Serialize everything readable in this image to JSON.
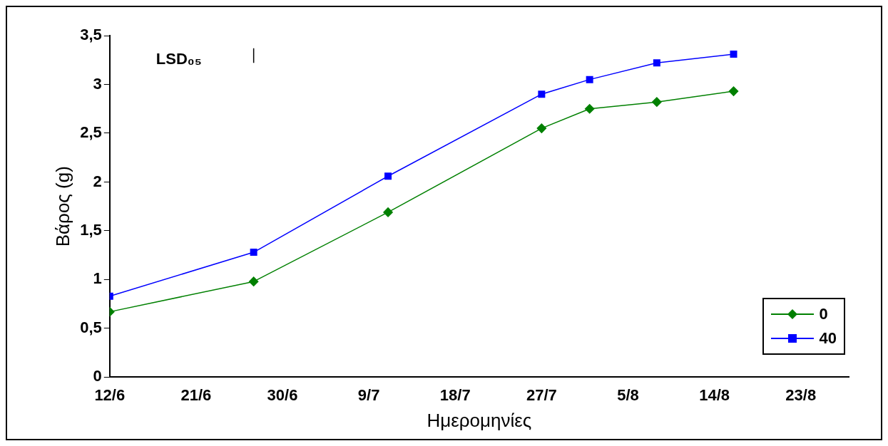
{
  "chart_data": {
    "type": "line",
    "xlabel": "Ημερομηνίες",
    "ylabel": "Βάρος (g)",
    "x": [
      "--06-12",
      "--06-27",
      "--07-11",
      "--07-27",
      "--08-01",
      "--08-08",
      "--08-16"
    ],
    "series": [
      {
        "name": "0",
        "color": "#008000",
        "values": [
          0.67,
          0.98,
          1.69,
          2.55,
          2.75,
          2.82,
          2.93
        ],
        "marker": "diamond"
      },
      {
        "name": "40",
        "color": "#0000ff",
        "values": [
          0.83,
          1.28,
          2.06,
          2.9,
          3.05,
          3.22,
          3.31
        ],
        "marker": "square"
      },
      {
        "color": "#000000",
        "x": [
          "--06-27",
          "--06-27"
        ],
        "values": [
          3.22,
          3.37
        ],
        "marker": "none"
      }
    ],
    "xlim": [
      "--06-12",
      "--08-28"
    ],
    "xticks": [
      {
        "value": "--06-12",
        "label": "12/6"
      },
      {
        "value": "--06-21",
        "label": "21/6"
      },
      {
        "value": "--06-30",
        "label": "30/6"
      },
      {
        "value": "--07-09",
        "label": "9/7"
      },
      {
        "value": "--07-18",
        "label": "18/7"
      },
      {
        "value": "--07-27",
        "label": "27/7"
      },
      {
        "value": "--08-05",
        "label": "5/8"
      },
      {
        "value": "--08-14",
        "label": "14/8"
      },
      {
        "value": "--08-23",
        "label": "23/8"
      }
    ],
    "ylim": [
      0,
      3.5
    ],
    "yticks": [
      {
        "value": 0,
        "label": "0"
      },
      {
        "value": 0.5,
        "label": "0,5"
      },
      {
        "value": 1,
        "label": "1"
      },
      {
        "value": 1.5,
        "label": "1,5"
      },
      {
        "value": 2,
        "label": "2"
      },
      {
        "value": 2.5,
        "label": "2,5"
      },
      {
        "value": 3,
        "label": "3"
      },
      {
        "value": 3.5,
        "label": "3,5"
      }
    ],
    "annotations": [
      "LSD₀₅"
    ],
    "grid": false,
    "legend": "bottom right"
  }
}
